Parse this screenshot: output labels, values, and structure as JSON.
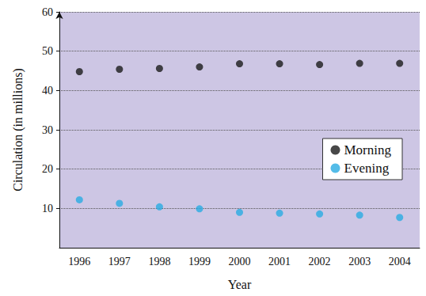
{
  "chart_data": {
    "type": "scatter",
    "x_label": "Year",
    "y_label": "Circulation (in millions)",
    "categories": [
      "1996",
      "1997",
      "1998",
      "1999",
      "2000",
      "2001",
      "2002",
      "2003",
      "2004"
    ],
    "series": [
      {
        "name": "Morning",
        "color": "#1a1a1a",
        "values": [
          44.8,
          45.4,
          45.6,
          46.0,
          46.8,
          46.8,
          46.6,
          46.9,
          46.9
        ]
      },
      {
        "name": "Evening",
        "color": "#29abe2",
        "values": [
          12.2,
          11.3,
          10.4,
          9.9,
          9.0,
          8.8,
          8.6,
          8.3,
          7.7
        ]
      }
    ],
    "ylim": [
      0,
      60
    ],
    "yticks": [
      10,
      20,
      30,
      40,
      50,
      60
    ],
    "grid": true,
    "legend": "right",
    "marker": "circle"
  }
}
